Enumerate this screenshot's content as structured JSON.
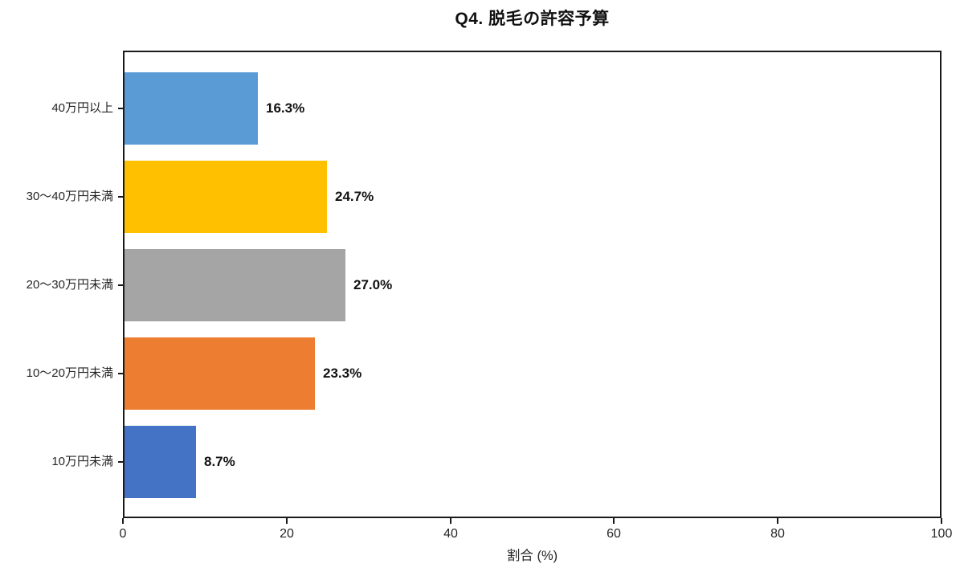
{
  "chart_data": {
    "type": "bar",
    "orientation": "horizontal",
    "title": "Q4. 脱毛の許容予算",
    "xlabel": "割合 (%)",
    "xlim": [
      0,
      100
    ],
    "x_ticks": [
      "0",
      "20",
      "40",
      "60",
      "80",
      "100"
    ],
    "x_tick_values": [
      0,
      20,
      40,
      60,
      80,
      100
    ],
    "categories": [
      "40万円以上",
      "30〜40万円未満",
      "20〜30万円未満",
      "10〜20万円未満",
      "10万円未満"
    ],
    "values": [
      16.3,
      24.7,
      27.0,
      23.3,
      8.7
    ],
    "value_labels": [
      "16.3%",
      "24.7%",
      "27.0%",
      "23.3%",
      "8.7%"
    ],
    "bar_colors": [
      "#5B9BD5",
      "#FFC000",
      "#A5A5A5",
      "#ED7D31",
      "#4472C4"
    ],
    "grid": false,
    "legend": "none"
  },
  "colors": {
    "background": "#ffffff",
    "axis": "#1a1a1a",
    "text": "#111111",
    "tick_text": "#262626"
  }
}
